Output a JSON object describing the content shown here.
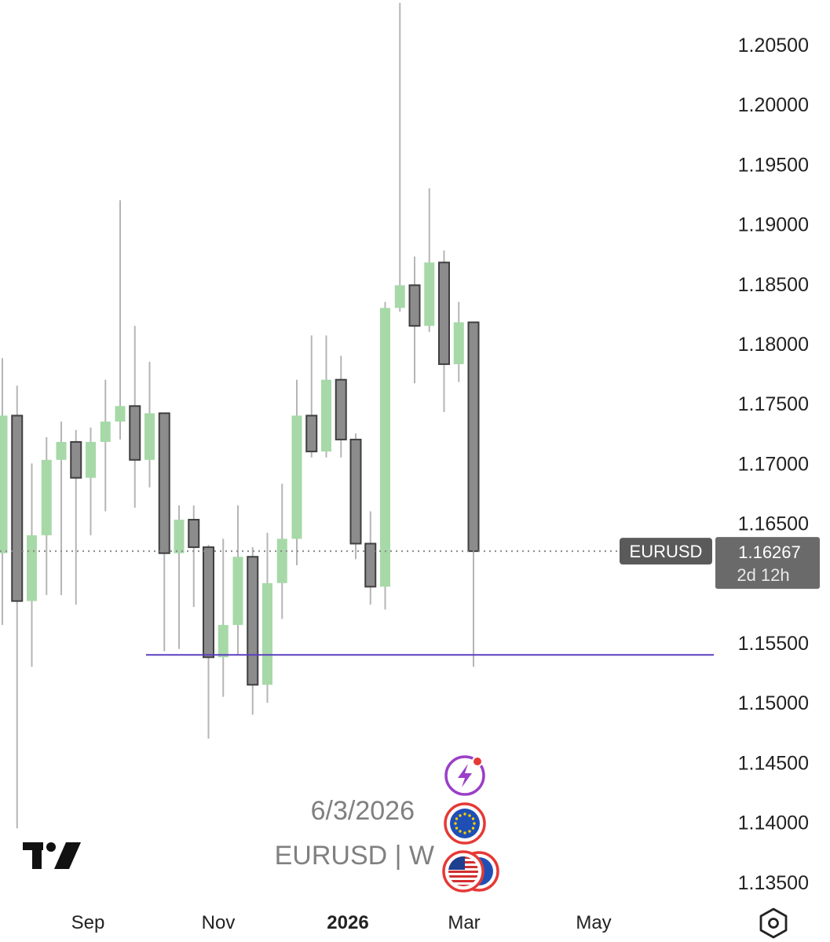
{
  "chart_data": {
    "type": "candlestick",
    "symbol": "EURUSD",
    "interval": "W",
    "watermark": "EURUSD | W",
    "date_label": "6/3/2026",
    "price_scale": [
      "1.20500",
      "1.20000",
      "1.19500",
      "1.19000",
      "1.18500",
      "1.18000",
      "1.17500",
      "1.17000",
      "1.16500",
      "1.15500",
      "1.15000",
      "1.14500",
      "1.14000",
      "1.13500"
    ],
    "ylim": [
      1.131,
      1.209
    ],
    "time_axis": [
      {
        "label": "Sep",
        "bold": false
      },
      {
        "label": "Nov",
        "bold": false
      },
      {
        "label": "2026",
        "bold": true
      },
      {
        "label": "Mar",
        "bold": false
      },
      {
        "label": "May",
        "bold": false
      }
    ],
    "last_price": "1.16267",
    "countdown": "2d 12h",
    "horizontal_line": 1.154,
    "candles": [
      {
        "o": 1.1625,
        "h": 1.1788,
        "l": 1.1565,
        "c": 1.174
      },
      {
        "o": 1.174,
        "h": 1.1765,
        "l": 1.1395,
        "c": 1.1585
      },
      {
        "o": 1.1585,
        "h": 1.17,
        "l": 1.153,
        "c": 1.164
      },
      {
        "o": 1.164,
        "h": 1.1722,
        "l": 1.159,
        "c": 1.1703
      },
      {
        "o": 1.1703,
        "h": 1.1735,
        "l": 1.159,
        "c": 1.1718
      },
      {
        "o": 1.1718,
        "h": 1.1728,
        "l": 1.1582,
        "c": 1.1688
      },
      {
        "o": 1.1688,
        "h": 1.173,
        "l": 1.164,
        "c": 1.1718
      },
      {
        "o": 1.1718,
        "h": 1.177,
        "l": 1.166,
        "c": 1.1735
      },
      {
        "o": 1.1735,
        "h": 1.192,
        "l": 1.172,
        "c": 1.1748
      },
      {
        "o": 1.1748,
        "h": 1.1815,
        "l": 1.1663,
        "c": 1.1703
      },
      {
        "o": 1.1703,
        "h": 1.1785,
        "l": 1.168,
        "c": 1.1742
      },
      {
        "o": 1.1742,
        "h": 1.1742,
        "l": 1.1543,
        "c": 1.1625
      },
      {
        "o": 1.1625,
        "h": 1.1665,
        "l": 1.1545,
        "c": 1.1653
      },
      {
        "o": 1.1653,
        "h": 1.1665,
        "l": 1.158,
        "c": 1.163
      },
      {
        "o": 1.163,
        "h": 1.1632,
        "l": 1.147,
        "c": 1.1538
      },
      {
        "o": 1.1538,
        "h": 1.1637,
        "l": 1.1505,
        "c": 1.1565
      },
      {
        "o": 1.1565,
        "h": 1.1665,
        "l": 1.154,
        "c": 1.1622
      },
      {
        "o": 1.1622,
        "h": 1.163,
        "l": 1.149,
        "c": 1.1515
      },
      {
        "o": 1.1515,
        "h": 1.1642,
        "l": 1.15,
        "c": 1.16
      },
      {
        "o": 1.16,
        "h": 1.1683,
        "l": 1.157,
        "c": 1.1637
      },
      {
        "o": 1.1637,
        "h": 1.177,
        "l": 1.1615,
        "c": 1.174
      },
      {
        "o": 1.174,
        "h": 1.1807,
        "l": 1.1705,
        "c": 1.171
      },
      {
        "o": 1.171,
        "h": 1.1807,
        "l": 1.1705,
        "c": 1.177
      },
      {
        "o": 1.177,
        "h": 1.179,
        "l": 1.1705,
        "c": 1.172
      },
      {
        "o": 1.172,
        "h": 1.1725,
        "l": 1.162,
        "c": 1.1633
      },
      {
        "o": 1.1633,
        "h": 1.166,
        "l": 1.1582,
        "c": 1.1597
      },
      {
        "o": 1.1597,
        "h": 1.1835,
        "l": 1.1578,
        "c": 1.183
      },
      {
        "o": 1.183,
        "h": 1.2085,
        "l": 1.1827,
        "c": 1.1849
      },
      {
        "o": 1.1849,
        "h": 1.1873,
        "l": 1.1767,
        "c": 1.1815
      },
      {
        "o": 1.1815,
        "h": 1.193,
        "l": 1.181,
        "c": 1.1868
      },
      {
        "o": 1.1868,
        "h": 1.1878,
        "l": 1.1743,
        "c": 1.1783
      },
      {
        "o": 1.1783,
        "h": 1.1835,
        "l": 1.1768,
        "c": 1.1818
      },
      {
        "o": 1.1818,
        "h": 1.1818,
        "l": 1.153,
        "c": 1.16267
      }
    ],
    "colors": {
      "up_fill": "#a6d9a7",
      "down_fill": "#8c8c8c",
      "down_border": "#3f3f3f",
      "wick": "#b5b5b5",
      "hline": "#5b3fbf",
      "price_line": "#8a8a8a",
      "tag_bg": "#5a5a5a",
      "tag_bg_price": "#6a6a6a"
    }
  },
  "icons": [
    "lightning-event-icon",
    "eu-flag-icon",
    "us-eu-flags-icon",
    "tradingview-logo",
    "settings-hexagon-icon"
  ]
}
